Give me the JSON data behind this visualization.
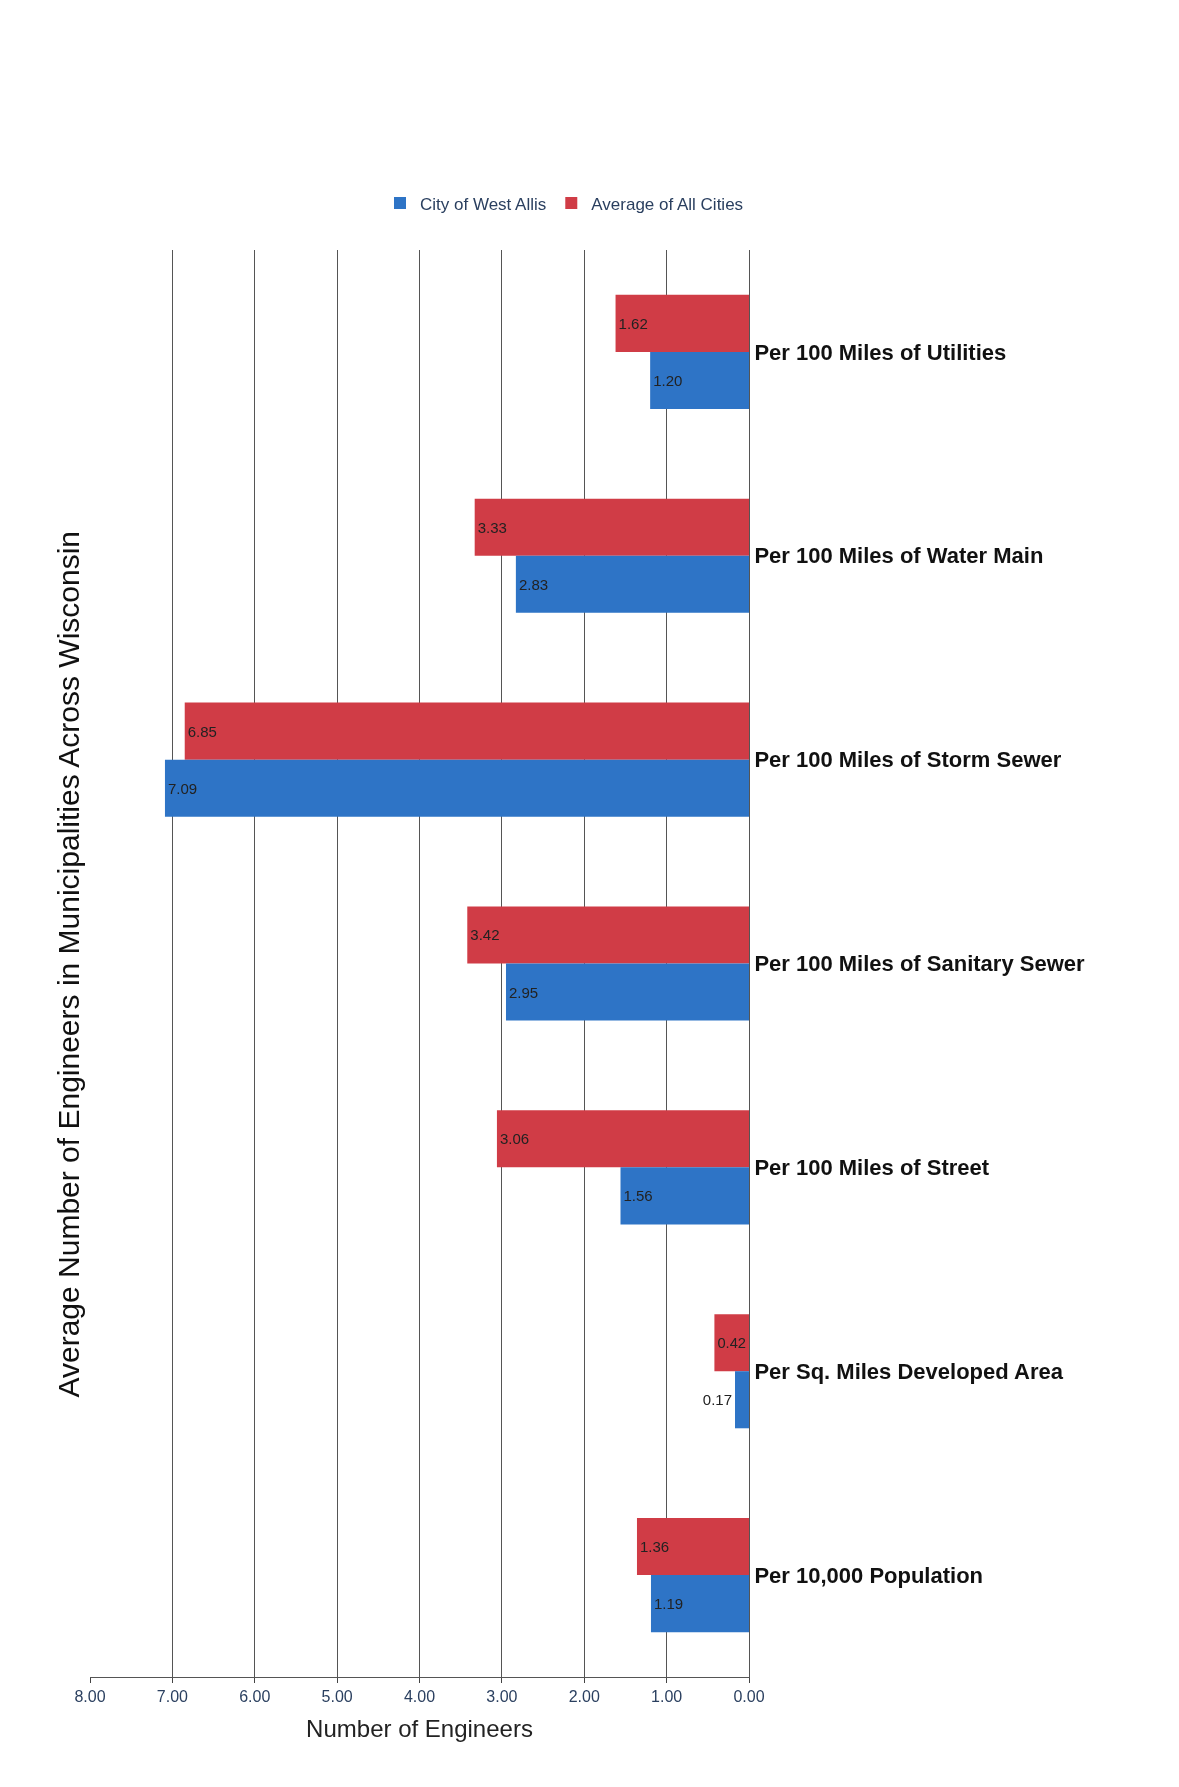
{
  "chart_data": {
    "type": "bar",
    "orientation": "horizontal",
    "title": "Average Number of Engineers in Municipalities Across Wisconsin",
    "xlabel": "Number of Engineers",
    "categories": [
      "Per 100 Miles of Utilities",
      "Per 100 Miles of Water Main",
      "Per 100 Miles of Storm Sewer",
      "Per 100 Miles of Sanitary Sewer",
      "Per 100 Miles of Street",
      "Per Sq. Miles Developed Area",
      "Per 10,000 Population"
    ],
    "series": [
      {
        "name": "City of West Allis",
        "color": "#2e74c6",
        "values": [
          1.2,
          2.83,
          7.09,
          2.95,
          1.56,
          0.17,
          1.19
        ],
        "value_labels": [
          "1.20",
          "2.83",
          "7.09",
          "2.95",
          "1.56",
          "0.17",
          "1.19"
        ]
      },
      {
        "name": "Average of All Cities",
        "color": "#d03c46",
        "values": [
          1.62,
          3.33,
          6.85,
          3.42,
          3.06,
          0.42,
          1.36
        ],
        "value_labels": [
          "1.62",
          "3.33",
          "6.85",
          "3.42",
          "3.06",
          "0.42",
          "1.36"
        ]
      }
    ],
    "xlim": [
      8,
      0
    ],
    "xticks": [
      {
        "value": 0,
        "label": "0.00"
      },
      {
        "value": 1,
        "label": "1.00"
      },
      {
        "value": 2,
        "label": "2.00"
      },
      {
        "value": 3,
        "label": "3.00"
      },
      {
        "value": 4,
        "label": "4.00"
      },
      {
        "value": 5,
        "label": "5.00"
      },
      {
        "value": 6,
        "label": "6.00"
      },
      {
        "value": 7,
        "label": "7.00"
      },
      {
        "value": 8,
        "label": "8.00"
      }
    ],
    "grid": "x",
    "legend": "top right"
  }
}
